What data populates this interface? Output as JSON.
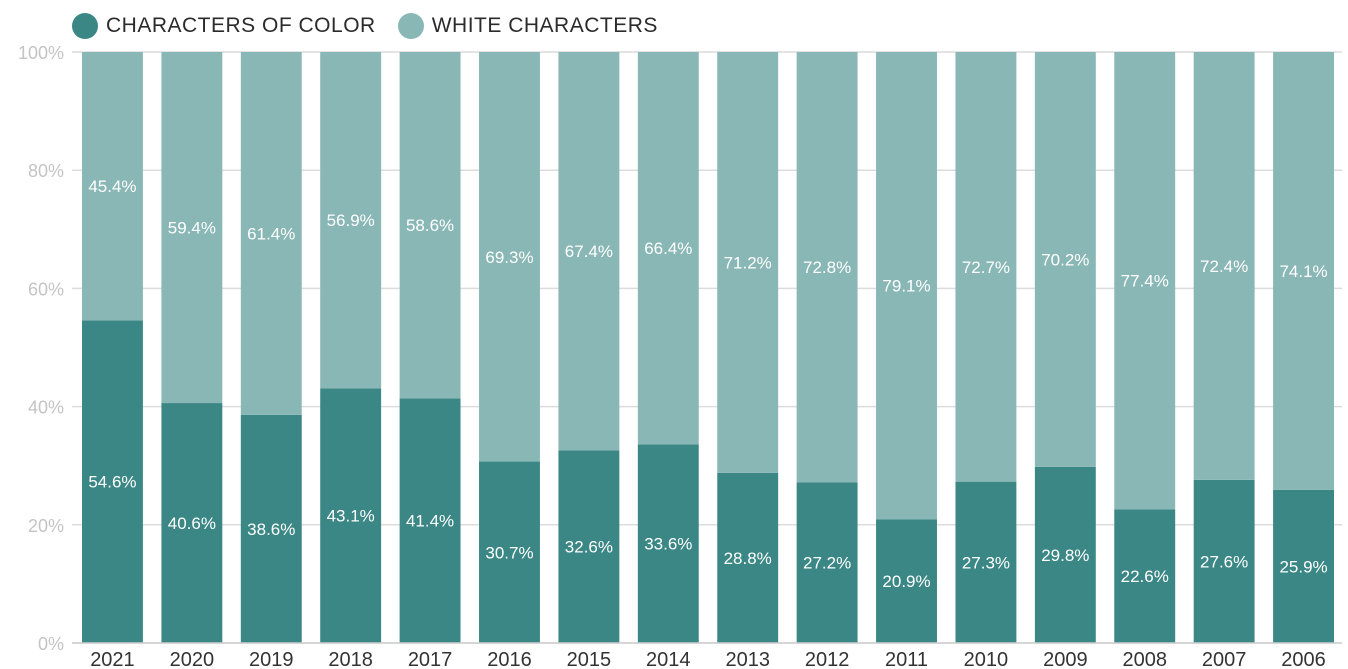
{
  "legend": [
    {
      "label": "CHARACTERS OF COLOR",
      "color": "#3a8785"
    },
    {
      "label": "WHITE CHARACTERS",
      "color": "#88b7b5"
    }
  ],
  "chart_data": {
    "type": "bar",
    "stacked": true,
    "title": "",
    "xlabel": "",
    "ylabel": "",
    "ylim": [
      0,
      100
    ],
    "y_ticks": [
      "0%",
      "20%",
      "40%",
      "60%",
      "80%",
      "100%"
    ],
    "grid": true,
    "legend_position": "top-left",
    "categories": [
      "2021",
      "2020",
      "2019",
      "2018",
      "2017",
      "2016",
      "2015",
      "2014",
      "2013",
      "2012",
      "2011",
      "2010",
      "2009",
      "2008",
      "2007",
      "2006"
    ],
    "series": [
      {
        "name": "CHARACTERS OF COLOR",
        "color": "#3a8785",
        "values": [
          54.6,
          40.6,
          38.6,
          43.1,
          41.4,
          30.7,
          32.6,
          33.6,
          28.8,
          27.2,
          20.9,
          27.3,
          29.8,
          22.6,
          27.6,
          25.9
        ],
        "labels": [
          "54.6%",
          "40.6%",
          "38.6%",
          "43.1%",
          "41.4%",
          "30.7%",
          "32.6%",
          "33.6%",
          "28.8%",
          "27.2%",
          "20.9%",
          "27.3%",
          "29.8%",
          "22.6%",
          "27.6%",
          "25.9%"
        ]
      },
      {
        "name": "WHITE CHARACTERS",
        "color": "#88b7b5",
        "values": [
          45.4,
          59.4,
          61.4,
          56.9,
          58.6,
          69.3,
          67.4,
          66.4,
          71.2,
          72.8,
          79.1,
          72.7,
          70.2,
          77.4,
          72.4,
          74.1
        ],
        "labels": [
          "45.4%",
          "59.4%",
          "61.4%",
          "56.9%",
          "58.6%",
          "69.3%",
          "67.4%",
          "66.4%",
          "71.2%",
          "72.8%",
          "79.1%",
          "72.7%",
          "70.2%",
          "77.4%",
          "72.4%",
          "74.1%"
        ]
      }
    ]
  }
}
